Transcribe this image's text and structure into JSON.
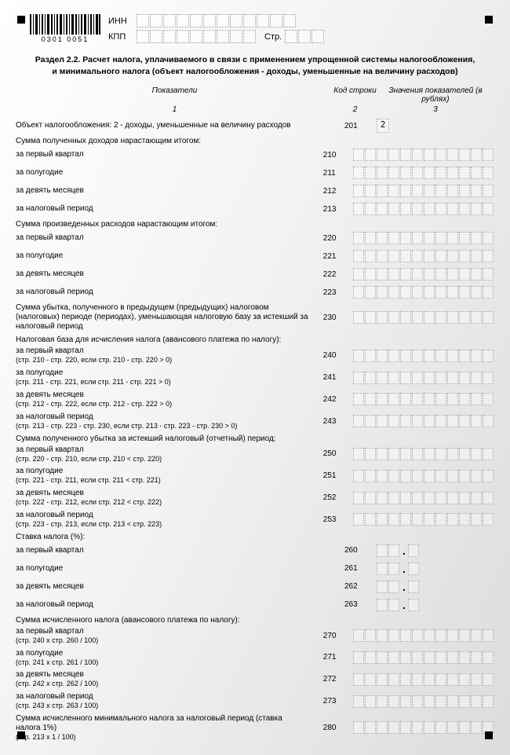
{
  "header": {
    "barcode_number": "0301 0051",
    "inn_label": "ИНН",
    "inn_cells": 12,
    "kpp_label": "КПП",
    "kpp_cells": 9,
    "page_label": "Стр.",
    "page_cells": 3
  },
  "title_line1": "Раздел 2.2. Расчет налога, уплачиваемого в связи с применением упрощенной системы налогообложения,",
  "title_line2": "и минимального налога (объект налогообложения - доходы, уменьшенные на величину расходов)",
  "col_headers": {
    "c1": "Показатели",
    "c2": "Код строки",
    "c3": "Значения показателей (в рублях)"
  },
  "col_nums": {
    "c1": "1",
    "c2": "2",
    "c3": "3"
  },
  "rows": [
    {
      "label": "Объект налогообложения:     2 - доходы, уменьшенные на величину расходов",
      "code": "201",
      "type": "single",
      "value": "2"
    },
    {
      "label": "Сумма полученных доходов нарастающим итогом:",
      "type": "header"
    },
    {
      "label": "за первый квартал",
      "code": "210",
      "type": "num12"
    },
    {
      "label": "за полугодие",
      "code": "211",
      "type": "num12"
    },
    {
      "label": "за девять месяцев",
      "code": "212",
      "type": "num12"
    },
    {
      "label": "за налоговый период",
      "code": "213",
      "type": "num12"
    },
    {
      "label": "Сумма произведенных расходов нарастающим итогом:",
      "type": "header"
    },
    {
      "label": "за первый квартал",
      "code": "220",
      "type": "num12"
    },
    {
      "label": "за полугодие",
      "code": "221",
      "type": "num12"
    },
    {
      "label": "за девять месяцев",
      "code": "222",
      "type": "num12"
    },
    {
      "label": "за налоговый период",
      "code": "223",
      "type": "num12"
    },
    {
      "label": "Сумма убытка, полученного в предыдущем (предыдущих) налоговом (налоговых) периоде (периодах), уменьшающая налоговую базу за истекший за налоговый период",
      "code": "230",
      "type": "num12"
    },
    {
      "label": "Налоговая база для исчисления налога (авансового платежа по налогу):",
      "type": "header"
    },
    {
      "label": "за первый квартал",
      "sub": "(стр. 210 - стр. 220, если стр. 210 - стр. 220 > 0)",
      "code": "240",
      "type": "num12"
    },
    {
      "label": "за полугодие",
      "sub": "(стр. 211 - стр. 221, если стр. 211 - стр. 221 > 0)",
      "code": "241",
      "type": "num12"
    },
    {
      "label": "за девять месяцев",
      "sub": "(стр. 212 - стр. 222, если стр. 212 - стр. 222 > 0)",
      "code": "242",
      "type": "num12"
    },
    {
      "label": "за налоговый период",
      "sub": "(стр. 213 - стр. 223 - стр. 230, если стр. 213 - стр. 223 - стр. 230 > 0)",
      "code": "243",
      "type": "num12"
    },
    {
      "label": "Сумма полученного убытка за истекший налоговый (отчетный) период:",
      "type": "header"
    },
    {
      "label": "за первый квартал",
      "sub": "(стр. 220 - стр. 210, если стр. 210 < стр. 220)",
      "code": "250",
      "type": "num12"
    },
    {
      "label": "за полугодие",
      "sub": "(стр. 221 - стр. 211, если стр. 211 < стр. 221)",
      "code": "251",
      "type": "num12"
    },
    {
      "label": "за девять месяцев",
      "sub": "(стр. 222 - стр. 212, если стр. 212 < стр. 222)",
      "code": "252",
      "type": "num12"
    },
    {
      "label": "за налоговый период",
      "sub": "(стр. 223 - стр. 213, если стр. 213 < стр. 223)",
      "code": "253",
      "type": "num12"
    },
    {
      "label": "Ставка налога (%):",
      "type": "header"
    },
    {
      "label": "за первый квартал",
      "code": "260",
      "type": "pct"
    },
    {
      "label": "за полугодие",
      "code": "261",
      "type": "pct"
    },
    {
      "label": "за девять месяцев",
      "code": "262",
      "type": "pct"
    },
    {
      "label": "за налоговый период",
      "code": "263",
      "type": "pct"
    },
    {
      "label": "Сумма исчисленного налога (авансового платежа по налогу):",
      "type": "header"
    },
    {
      "label": "за первый квартал",
      "sub": "(стр. 240 x стр. 260 / 100)",
      "code": "270",
      "type": "num12"
    },
    {
      "label": "за полугодие",
      "sub": "(стр. 241 x стр. 261 / 100)",
      "code": "271",
      "type": "num12"
    },
    {
      "label": "за девять месяцев",
      "sub": "(стр. 242 x стр. 262 / 100)",
      "code": "272",
      "type": "num12"
    },
    {
      "label": "за налоговый период",
      "sub": "(стр. 243 x стр. 263 / 100)",
      "code": "273",
      "type": "num12"
    },
    {
      "label": "Сумма исчисленного минимального налога за налоговый период (ставка налога 1%)",
      "sub": "(стр. 213 x 1 / 100)",
      "code": "280",
      "type": "num12"
    }
  ],
  "style": {
    "page_bg_from": "#ffffff",
    "page_bg_to": "#dcdcdc",
    "cell_border": "#aaaaaa",
    "text_color": "#000000"
  }
}
